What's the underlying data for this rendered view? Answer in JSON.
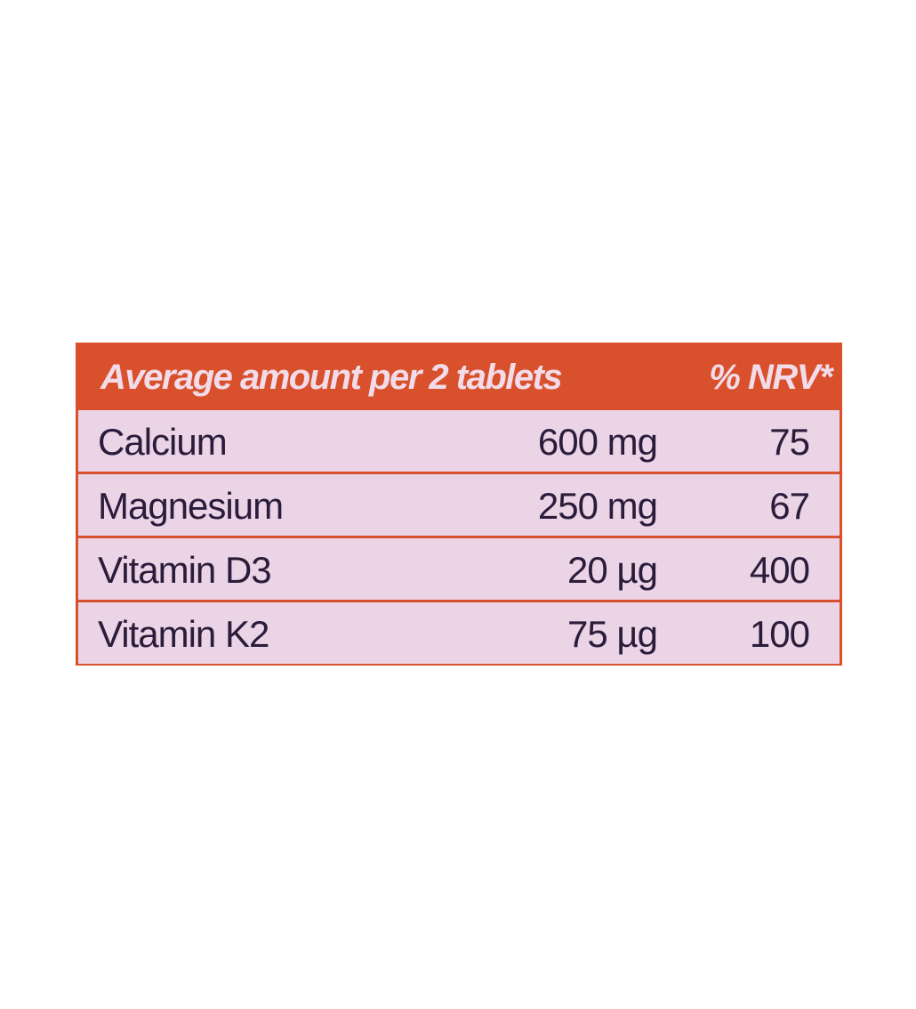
{
  "table": {
    "header": [
      "Average amount per 2 tablets",
      "% NRV*"
    ],
    "rows": [
      [
        "Calcium",
        "600 mg",
        75
      ],
      [
        "Magnesium",
        "250 mg",
        67
      ],
      [
        "Vitamin D3",
        "20 µg",
        400
      ],
      [
        "Vitamin K2",
        "75 µg",
        100
      ]
    ]
  }
}
